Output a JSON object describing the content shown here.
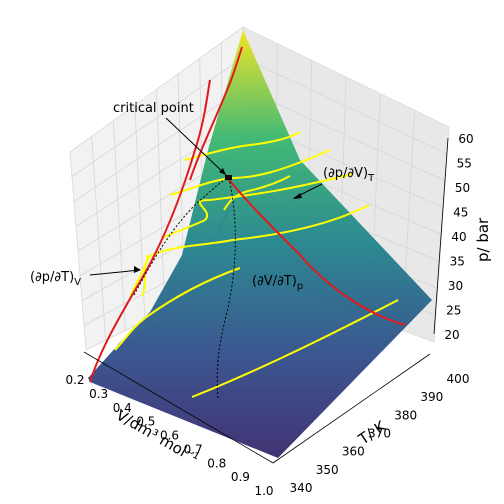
{
  "chart_data": {
    "type": "surface3d",
    "title": "",
    "axes": {
      "x": {
        "label": "V/dm³ mol⁻¹",
        "ticks": [
          "0.2",
          "0.3",
          "0.4",
          "0.5",
          "0.6",
          "0.7",
          "0.8",
          "0.9",
          "1.0"
        ],
        "range": [
          0.2,
          1.0
        ]
      },
      "y": {
        "label": "T/ K",
        "ticks": [
          "340",
          "350",
          "360",
          "370",
          "380",
          "390",
          "400"
        ],
        "range": [
          340,
          400
        ]
      },
      "z": {
        "label": "p/ bar",
        "ticks": [
          "20",
          "25",
          "30",
          "35",
          "40",
          "45",
          "50",
          "55",
          "60"
        ],
        "range": [
          20,
          60
        ]
      }
    },
    "colormap": "viridis",
    "surface": "van der Waals equation of state p(V,T)",
    "curves": [
      {
        "name": "isobars",
        "color": "#ffff00",
        "kind": "constant p"
      },
      {
        "name": "isotherms",
        "color": "#e31a1c",
        "kind": "constant T"
      },
      {
        "name": "coexistence",
        "color": "#000000",
        "style": "dotted"
      }
    ],
    "annotations": [
      {
        "text": "critical point",
        "target": "critical point on surface"
      },
      {
        "text": "(∂p/∂V)_T",
        "target": "red isotherm"
      },
      {
        "text": "(∂p/∂T)_V",
        "target": "left edge curve"
      },
      {
        "text": "(∂V/∂T)_p",
        "target": "yellow isobar"
      }
    ]
  },
  "labels": {
    "critical": "critical point",
    "dpdV": "(∂p/∂V)",
    "dpdV_sub": "T",
    "dpdT": "(∂p/∂T)",
    "dpdT_sub": "V",
    "dVdT": "(∂V/∂T)",
    "dVdT_sub": "p",
    "xlabel": "V/dm³ mol⁻¹",
    "ylabel": "T/ K",
    "zlabel": "p/ bar"
  },
  "colors": {
    "isobar": "#ffff00",
    "isotherm": "#e31a1c",
    "pane": "#f2f2f2",
    "grid": "#d6d6d6"
  }
}
